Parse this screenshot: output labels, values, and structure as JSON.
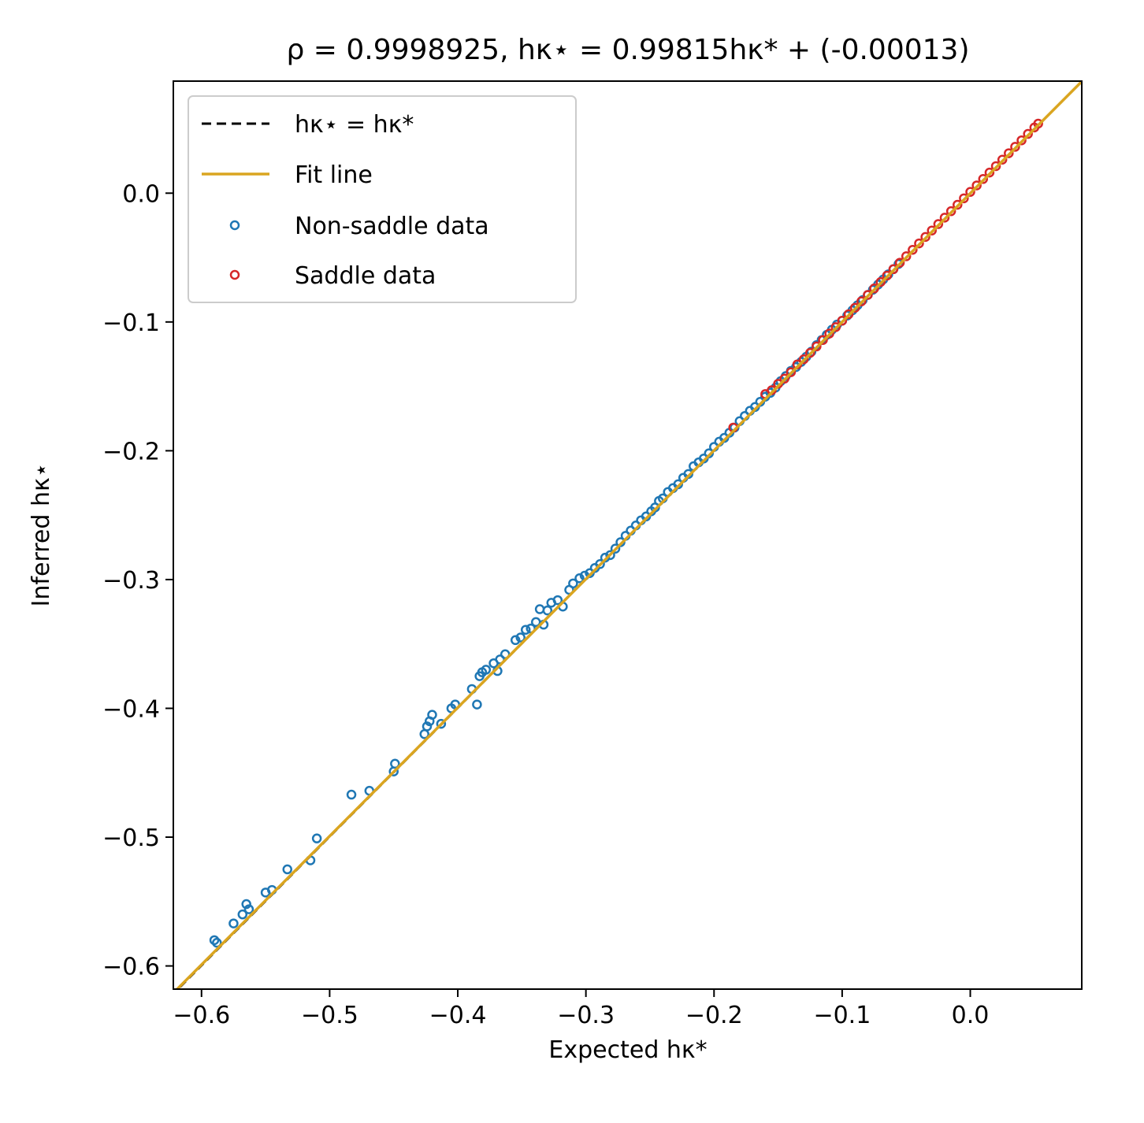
{
  "chart_data": {
    "type": "scatter",
    "title": "ρ = 0.9998925,   hκ⋆ = 0.99815hκ* + (-0.00013)",
    "xlabel": "Expected hκ*",
    "ylabel": "Inferred hκ⋆",
    "xlim": [
      -0.622,
      0.087
    ],
    "ylim": [
      -0.618,
      0.087
    ],
    "xticks": [
      {
        "value": -0.6,
        "label": "−0.6"
      },
      {
        "value": -0.5,
        "label": "−0.5"
      },
      {
        "value": -0.4,
        "label": "−0.4"
      },
      {
        "value": -0.3,
        "label": "−0.3"
      },
      {
        "value": -0.2,
        "label": "−0.2"
      },
      {
        "value": -0.1,
        "label": "−0.1"
      },
      {
        "value": 0.0,
        "label": "0.0"
      }
    ],
    "yticks": [
      {
        "value": 0.0,
        "label": "0.0"
      },
      {
        "value": -0.1,
        "label": "−0.1"
      },
      {
        "value": -0.2,
        "label": "−0.2"
      },
      {
        "value": -0.3,
        "label": "−0.3"
      },
      {
        "value": -0.4,
        "label": "−0.4"
      },
      {
        "value": -0.5,
        "label": "−0.5"
      },
      {
        "value": -0.6,
        "label": "−0.6"
      }
    ],
    "grid": false,
    "legend": {
      "placement": "upper-left",
      "entries": [
        {
          "label": "hκ⋆ = hκ*",
          "kind": "dashed-line",
          "color": "#000000"
        },
        {
          "label": "Fit line",
          "kind": "line",
          "color": "#DAA520"
        },
        {
          "label": "Non-saddle data",
          "kind": "marker",
          "color": "#1f77b4"
        },
        {
          "label": "Saddle data",
          "kind": "marker",
          "color": "#d62728"
        }
      ]
    },
    "identity_line": {
      "slope": 1.0,
      "intercept": 0.0,
      "color": "#000000"
    },
    "fit_line": {
      "slope": 0.99815,
      "intercept": -0.00013,
      "color": "#DAA520"
    },
    "series": [
      {
        "name": "Non-saddle data",
        "color": "#1f77b4",
        "x": [
          -0.59,
          -0.588,
          -0.575,
          -0.568,
          -0.565,
          -0.563,
          -0.55,
          -0.545,
          -0.533,
          -0.515,
          -0.51,
          -0.483,
          -0.469,
          -0.45,
          -0.449,
          -0.426,
          -0.424,
          -0.422,
          -0.42,
          -0.413,
          -0.405,
          -0.402,
          -0.389,
          -0.385,
          -0.383,
          -0.381,
          -0.378,
          -0.372,
          -0.369,
          -0.367,
          -0.363,
          -0.355,
          -0.351,
          -0.347,
          -0.343,
          -0.339,
          -0.336,
          -0.333,
          -0.33,
          -0.327,
          -0.322,
          -0.318,
          -0.313,
          -0.31,
          -0.305,
          -0.301,
          -0.297,
          -0.293,
          -0.289,
          -0.285,
          -0.281,
          -0.277,
          -0.273,
          -0.269,
          -0.265,
          -0.261,
          -0.257,
          -0.253,
          -0.249,
          -0.246,
          -0.243,
          -0.24,
          -0.236,
          -0.232,
          -0.228,
          -0.224,
          -0.22,
          -0.216,
          -0.212,
          -0.208,
          -0.204,
          -0.2,
          -0.196,
          -0.192,
          -0.188,
          -0.184,
          -0.18,
          -0.176,
          -0.172,
          -0.168,
          -0.164,
          -0.16,
          -0.156,
          -0.152,
          -0.148,
          -0.144,
          -0.14,
          -0.136,
          -0.132,
          -0.128,
          -0.124,
          -0.12,
          -0.116,
          -0.112,
          -0.108,
          -0.104,
          -0.1,
          -0.096,
          -0.092,
          -0.088,
          -0.084,
          -0.08,
          -0.076,
          -0.072,
          -0.068,
          -0.064,
          -0.06,
          -0.056
        ],
        "y": [
          -0.58,
          -0.582,
          -0.567,
          -0.56,
          -0.552,
          -0.556,
          -0.543,
          -0.541,
          -0.525,
          -0.518,
          -0.501,
          -0.467,
          -0.464,
          -0.449,
          -0.443,
          -0.42,
          -0.414,
          -0.41,
          -0.405,
          -0.412,
          -0.4,
          -0.397,
          -0.385,
          -0.397,
          -0.375,
          -0.372,
          -0.37,
          -0.365,
          -0.371,
          -0.362,
          -0.358,
          -0.347,
          -0.345,
          -0.339,
          -0.338,
          -0.333,
          -0.323,
          -0.335,
          -0.324,
          -0.318,
          -0.316,
          -0.321,
          -0.308,
          -0.303,
          -0.299,
          -0.297,
          -0.295,
          -0.291,
          -0.288,
          -0.283,
          -0.281,
          -0.276,
          -0.271,
          -0.266,
          -0.262,
          -0.258,
          -0.254,
          -0.251,
          -0.247,
          -0.244,
          -0.239,
          -0.237,
          -0.232,
          -0.229,
          -0.226,
          -0.221,
          -0.218,
          -0.212,
          -0.209,
          -0.206,
          -0.202,
          -0.197,
          -0.193,
          -0.19,
          -0.186,
          -0.182,
          -0.177,
          -0.173,
          -0.169,
          -0.166,
          -0.162,
          -0.158,
          -0.155,
          -0.151,
          -0.146,
          -0.142,
          -0.138,
          -0.135,
          -0.131,
          -0.127,
          -0.123,
          -0.118,
          -0.114,
          -0.11,
          -0.106,
          -0.102,
          -0.099,
          -0.095,
          -0.091,
          -0.087,
          -0.083,
          -0.079,
          -0.075,
          -0.071,
          -0.067,
          -0.063,
          -0.059,
          -0.055
        ]
      },
      {
        "name": "Saddle data",
        "color": "#d62728",
        "x": [
          -0.185,
          -0.16,
          -0.155,
          -0.15,
          -0.145,
          -0.14,
          -0.135,
          -0.13,
          -0.125,
          -0.12,
          -0.115,
          -0.11,
          -0.105,
          -0.1,
          -0.095,
          -0.09,
          -0.085,
          -0.08,
          -0.075,
          -0.07,
          -0.065,
          -0.06,
          -0.055,
          -0.05,
          -0.045,
          -0.04,
          -0.035,
          -0.03,
          -0.025,
          -0.02,
          -0.015,
          -0.01,
          -0.005,
          0.0,
          0.005,
          0.01,
          0.015,
          0.02,
          0.025,
          0.03,
          0.035,
          0.04,
          0.045,
          0.05,
          0.053
        ],
        "y": [
          -0.182,
          -0.156,
          -0.153,
          -0.148,
          -0.144,
          -0.139,
          -0.133,
          -0.129,
          -0.124,
          -0.119,
          -0.114,
          -0.109,
          -0.104,
          -0.099,
          -0.094,
          -0.089,
          -0.084,
          -0.079,
          -0.074,
          -0.069,
          -0.064,
          -0.059,
          -0.054,
          -0.049,
          -0.044,
          -0.039,
          -0.034,
          -0.029,
          -0.024,
          -0.019,
          -0.014,
          -0.009,
          -0.004,
          0.001,
          0.006,
          0.011,
          0.016,
          0.021,
          0.026,
          0.031,
          0.036,
          0.041,
          0.046,
          0.051,
          0.054
        ]
      }
    ]
  }
}
